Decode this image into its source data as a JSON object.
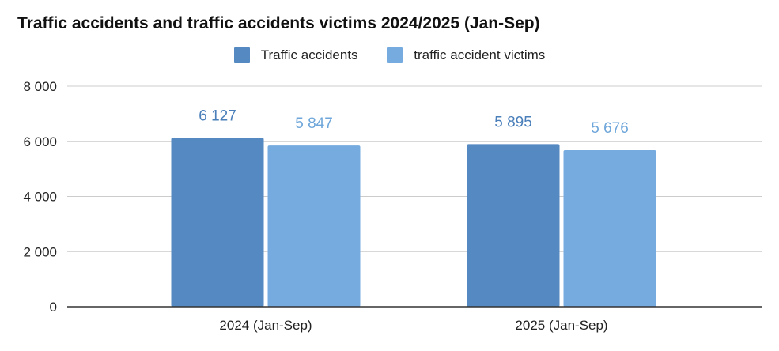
{
  "chart_data": {
    "type": "bar",
    "title": "Traffic accidents and traffic accidents victims 2024/2025 (Jan-Sep)",
    "xlabel": "",
    "ylabel": "",
    "categories": [
      "2024 (Jan-Sep)",
      "2025 (Jan-Sep)"
    ],
    "series": [
      {
        "name": "Traffic accidents",
        "values": [
          6127,
          5895
        ],
        "value_labels": [
          "6 127",
          "5 895"
        ],
        "color": "#5589c2",
        "label_color": "#4a7fba"
      },
      {
        "name": "traffic accident victims",
        "values": [
          5847,
          5676
        ],
        "value_labels": [
          "5 847",
          "5 676"
        ],
        "color": "#76abdf",
        "label_color": "#6ea6da"
      }
    ],
    "ylim": [
      0,
      8000
    ],
    "yticks": [
      0,
      2000,
      4000,
      6000,
      8000
    ],
    "ytick_labels": [
      "0",
      "2 000",
      "4 000",
      "6 000",
      "8 000"
    ],
    "grid": true,
    "legend_position": "top-center"
  }
}
